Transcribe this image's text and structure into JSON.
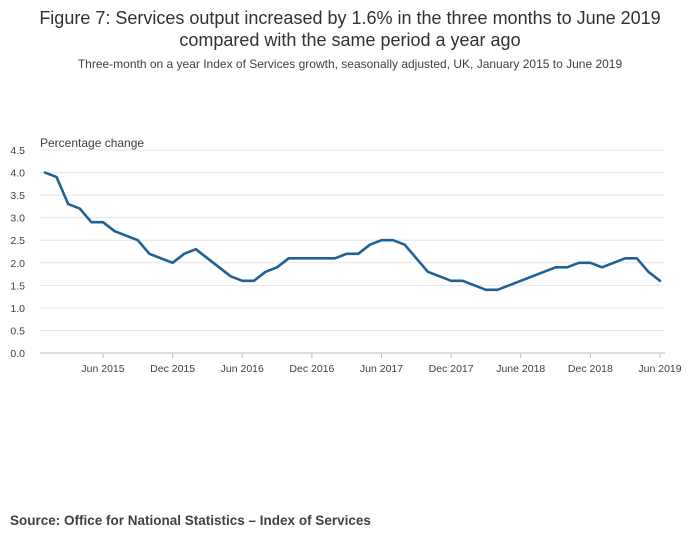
{
  "title": "Figure 7: Services output increased by 1.6% in the three months to June 2019 compared with the same period a year ago",
  "subtitle": "Three-month on a year Index of Services growth, seasonally adjusted, UK, January 2015 to June 2019",
  "source": "Source: Office for National Statistics – Index of Services",
  "colors": {
    "line": "#206095",
    "grid": "#e4e4e4",
    "axis": "#bebebe",
    "text": "#414042"
  },
  "chart_data": {
    "type": "line",
    "title": "Figure 7: Services output increased by 1.6% in the three months to June 2019 compared with the same period a year ago",
    "subtitle": "Three-month on a year Index of Services growth, seasonally adjusted, UK, January 2015 to June 2019",
    "xlabel": "",
    "ylabel": "Percentage change",
    "ylim": [
      0,
      4.5
    ],
    "yticks": [
      "0.0",
      "0.5",
      "1.0",
      "1.5",
      "2.0",
      "2.5",
      "3.0",
      "3.5",
      "4.0",
      "4.5"
    ],
    "xticks": [
      "Jun 2015",
      "Dec 2015",
      "Jun 2016",
      "Dec 2016",
      "Jun 2017",
      "Dec 2017",
      "June 2018",
      "Dec 2018",
      "Jun 2019"
    ],
    "grid": true,
    "legend": "none",
    "x": [
      "Jan 2015",
      "Feb 2015",
      "Mar 2015",
      "Apr 2015",
      "May 2015",
      "Jun 2015",
      "Jul 2015",
      "Aug 2015",
      "Sep 2015",
      "Oct 2015",
      "Nov 2015",
      "Dec 2015",
      "Jan 2016",
      "Feb 2016",
      "Mar 2016",
      "Apr 2016",
      "May 2016",
      "Jun 2016",
      "Jul 2016",
      "Aug 2016",
      "Sep 2016",
      "Oct 2016",
      "Nov 2016",
      "Dec 2016",
      "Jan 2017",
      "Feb 2017",
      "Mar 2017",
      "Apr 2017",
      "May 2017",
      "Jun 2017",
      "Jul 2017",
      "Aug 2017",
      "Sep 2017",
      "Oct 2017",
      "Nov 2017",
      "Dec 2017",
      "Jan 2018",
      "Feb 2018",
      "Mar 2018",
      "Apr 2018",
      "May 2018",
      "Jun 2018",
      "Jul 2018",
      "Aug 2018",
      "Sep 2018",
      "Oct 2018",
      "Nov 2018",
      "Dec 2018",
      "Jan 2019",
      "Feb 2019",
      "Mar 2019",
      "Apr 2019",
      "May 2019",
      "Jun 2019"
    ],
    "series": [
      {
        "values": [
          4.0,
          3.9,
          3.3,
          3.2,
          2.9,
          2.9,
          2.7,
          2.6,
          2.5,
          2.2,
          2.1,
          2.0,
          2.2,
          2.3,
          2.1,
          1.9,
          1.7,
          1.6,
          1.6,
          1.8,
          1.9,
          2.1,
          2.1,
          2.1,
          2.1,
          2.1,
          2.2,
          2.2,
          2.4,
          2.5,
          2.5,
          2.4,
          2.1,
          1.8,
          1.7,
          1.6,
          1.6,
          1.5,
          1.4,
          1.4,
          1.5,
          1.6,
          1.7,
          1.8,
          1.9,
          1.9,
          2.0,
          2.0,
          1.9,
          2.0,
          2.1,
          2.1,
          1.8,
          1.6
        ]
      }
    ]
  }
}
